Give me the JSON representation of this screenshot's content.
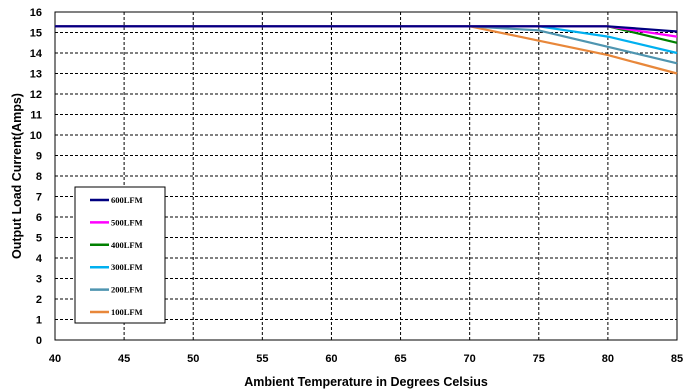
{
  "chart_data": {
    "type": "line",
    "title": "",
    "xlabel": "Ambient Temperature in Degrees Celsius",
    "ylabel": "Output Load Current(Amps)",
    "xlim": [
      40,
      85
    ],
    "ylim": [
      0,
      16
    ],
    "xticks": [
      40,
      45,
      50,
      55,
      60,
      65,
      70,
      75,
      80,
      85
    ],
    "yticks": [
      0,
      1,
      2,
      3,
      4,
      5,
      6,
      7,
      8,
      9,
      10,
      11,
      12,
      13,
      14,
      15,
      16
    ],
    "grid": true,
    "legend_position": "bottom-left",
    "series": [
      {
        "name": "600LFM",
        "color": "#000080",
        "x": [
          40,
          70,
          75,
          80,
          85
        ],
        "y": [
          15.3,
          15.3,
          15.3,
          15.3,
          15.05
        ]
      },
      {
        "name": "500LFM",
        "color": "#ff00ff",
        "x": [
          40,
          70,
          75,
          80,
          85
        ],
        "y": [
          15.3,
          15.3,
          15.3,
          15.3,
          14.8
        ]
      },
      {
        "name": "400LFM",
        "color": "#008000",
        "x": [
          40,
          70,
          75,
          80,
          85
        ],
        "y": [
          15.3,
          15.3,
          15.3,
          15.3,
          14.5
        ]
      },
      {
        "name": "300LFM",
        "color": "#00b0f0",
        "x": [
          40,
          70,
          75,
          80,
          85
        ],
        "y": [
          15.3,
          15.3,
          15.3,
          14.8,
          14.0
        ]
      },
      {
        "name": "200LFM",
        "color": "#4f95b0",
        "x": [
          40,
          70,
          75,
          80,
          85
        ],
        "y": [
          15.3,
          15.3,
          15.1,
          14.3,
          13.5
        ]
      },
      {
        "name": "100LFM",
        "color": "#e8873a",
        "x": [
          40,
          70,
          75,
          80,
          85
        ],
        "y": [
          15.3,
          15.3,
          14.6,
          13.9,
          13.0
        ]
      }
    ]
  }
}
